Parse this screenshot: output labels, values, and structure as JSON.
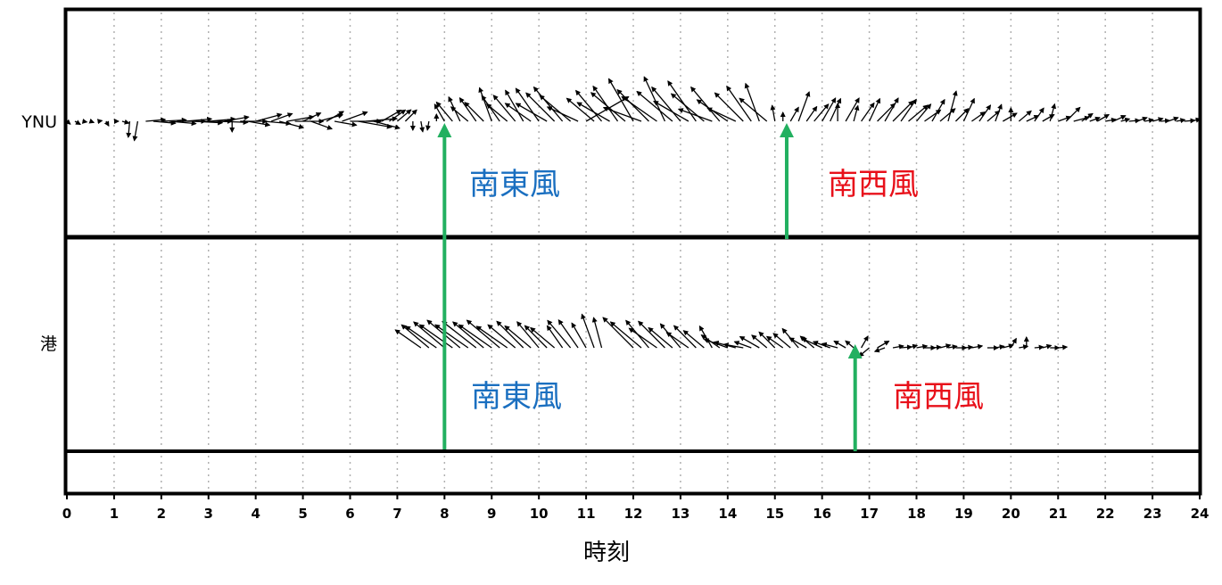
{
  "chart_data": {
    "type": "wind-vector-timeseries",
    "xlabel": "時刻",
    "x_range": [
      0,
      24
    ],
    "x_ticks": [
      "0",
      "1",
      "2",
      "3",
      "4",
      "5",
      "6",
      "7",
      "8",
      "9",
      "10",
      "11",
      "12",
      "13",
      "14",
      "15",
      "16",
      "17",
      "18",
      "19",
      "20",
      "21",
      "22",
      "23",
      "24"
    ],
    "grid": "vertical dotted lines at each hour",
    "colors": {
      "arrow": "#000000",
      "marker": "#22b060",
      "southeast": "#1a6fc0",
      "southwest": "#e8101a"
    },
    "rows": [
      {
        "label": "YNU",
        "vectors": [
          [
            0.0,
            -40,
            5
          ],
          [
            0.17,
            -30,
            7
          ],
          [
            0.33,
            -10,
            5
          ],
          [
            0.5,
            -20,
            4
          ],
          [
            0.67,
            10,
            4
          ],
          [
            0.83,
            -60,
            6
          ],
          [
            1.0,
            0,
            5
          ],
          [
            1.17,
            -15,
            8
          ],
          [
            1.33,
            -95,
            18
          ],
          [
            1.5,
            -100,
            22
          ],
          [
            1.67,
            5,
            22
          ],
          [
            1.83,
            -5,
            25
          ],
          [
            2.0,
            3,
            28
          ],
          [
            2.17,
            -5,
            30
          ],
          [
            2.33,
            0,
            32
          ],
          [
            2.5,
            5,
            30
          ],
          [
            2.67,
            -3,
            33
          ],
          [
            2.83,
            0,
            35
          ],
          [
            3.0,
            5,
            30
          ],
          [
            3.17,
            -2,
            35
          ],
          [
            3.33,
            10,
            28
          ],
          [
            3.5,
            -90,
            12
          ],
          [
            3.67,
            0,
            30
          ],
          [
            3.83,
            -10,
            25
          ],
          [
            4.0,
            15,
            30
          ],
          [
            4.17,
            -5,
            30
          ],
          [
            4.33,
            20,
            25
          ],
          [
            4.5,
            -15,
            28
          ],
          [
            4.67,
            10,
            30
          ],
          [
            4.83,
            0,
            32
          ],
          [
            5.0,
            25,
            22
          ],
          [
            5.17,
            -20,
            25
          ],
          [
            5.33,
            15,
            28
          ],
          [
            5.5,
            30,
            22
          ],
          [
            5.67,
            -10,
            25
          ],
          [
            5.83,
            20,
            30
          ],
          [
            6.0,
            0,
            35
          ],
          [
            6.17,
            -10,
            38
          ],
          [
            6.33,
            5,
            35
          ],
          [
            6.5,
            -15,
            30
          ],
          [
            6.67,
            30,
            25
          ],
          [
            6.83,
            35,
            22
          ],
          [
            7.0,
            40,
            20
          ],
          [
            7.17,
            45,
            18
          ],
          [
            7.33,
            -90,
            10
          ],
          [
            7.5,
            -80,
            12
          ],
          [
            7.67,
            -100,
            10
          ],
          [
            7.83,
            90,
            8
          ],
          [
            8.0,
            120,
            22
          ],
          [
            8.17,
            130,
            28
          ],
          [
            8.33,
            115,
            30
          ],
          [
            8.5,
            140,
            25
          ],
          [
            8.67,
            125,
            32
          ],
          [
            8.83,
            135,
            30
          ],
          [
            9.0,
            110,
            40
          ],
          [
            9.17,
            125,
            35
          ],
          [
            9.33,
            140,
            30
          ],
          [
            9.5,
            130,
            38
          ],
          [
            9.67,
            120,
            40
          ],
          [
            9.83,
            145,
            35
          ],
          [
            10.0,
            125,
            45
          ],
          [
            10.17,
            150,
            40
          ],
          [
            10.33,
            135,
            45
          ],
          [
            10.5,
            130,
            50
          ],
          [
            10.67,
            140,
            45
          ],
          [
            10.83,
            155,
            38
          ],
          [
            11.0,
            30,
            55
          ],
          [
            11.17,
            140,
            40
          ],
          [
            11.33,
            130,
            45
          ],
          [
            11.5,
            150,
            42
          ],
          [
            11.67,
            125,
            48
          ],
          [
            11.83,
            140,
            50
          ],
          [
            12.0,
            120,
            55
          ],
          [
            12.17,
            160,
            45
          ],
          [
            12.33,
            135,
            50
          ],
          [
            12.5,
            145,
            48
          ],
          [
            12.67,
            115,
            55
          ],
          [
            12.83,
            140,
            52
          ],
          [
            13.0,
            130,
            50
          ],
          [
            13.17,
            150,
            45
          ],
          [
            13.33,
            125,
            55
          ],
          [
            13.5,
            140,
            48
          ],
          [
            13.67,
            160,
            40
          ],
          [
            13.83,
            130,
            50
          ],
          [
            14.0,
            145,
            42
          ],
          [
            14.17,
            155,
            35
          ],
          [
            14.33,
            135,
            45
          ],
          [
            14.5,
            125,
            48
          ],
          [
            14.67,
            110,
            45
          ],
          [
            14.83,
            140,
            40
          ],
          [
            15.0,
            100,
            18
          ],
          [
            15.17,
            90,
            10
          ],
          [
            15.33,
            60,
            18
          ],
          [
            15.5,
            70,
            35
          ],
          [
            15.67,
            55,
            20
          ],
          [
            15.83,
            50,
            25
          ],
          [
            16.0,
            60,
            30
          ],
          [
            16.17,
            65,
            28
          ],
          [
            16.33,
            90,
            20
          ],
          [
            16.5,
            60,
            30
          ],
          [
            16.67,
            75,
            18
          ],
          [
            16.83,
            55,
            25
          ],
          [
            17.0,
            65,
            28
          ],
          [
            17.17,
            45,
            28
          ],
          [
            17.33,
            60,
            30
          ],
          [
            17.5,
            45,
            32
          ],
          [
            17.67,
            55,
            30
          ],
          [
            17.83,
            40,
            28
          ],
          [
            18.0,
            50,
            25
          ],
          [
            18.17,
            35,
            22
          ],
          [
            18.33,
            60,
            28
          ],
          [
            18.5,
            40,
            22
          ],
          [
            18.67,
            75,
            35
          ],
          [
            18.83,
            45,
            20
          ],
          [
            19.0,
            65,
            28
          ],
          [
            19.17,
            35,
            18
          ],
          [
            19.33,
            55,
            22
          ],
          [
            19.5,
            40,
            18
          ],
          [
            19.67,
            70,
            20
          ],
          [
            19.83,
            30,
            18
          ],
          [
            20.0,
            90,
            15
          ],
          [
            20.17,
            40,
            18
          ],
          [
            20.33,
            25,
            15
          ],
          [
            20.5,
            55,
            18
          ],
          [
            20.67,
            30,
            15
          ],
          [
            20.83,
            75,
            20
          ],
          [
            21.0,
            20,
            15
          ],
          [
            21.17,
            45,
            22
          ],
          [
            21.33,
            15,
            18
          ],
          [
            21.5,
            35,
            15
          ],
          [
            21.67,
            20,
            12
          ],
          [
            21.83,
            30,
            15
          ],
          [
            22.0,
            10,
            12
          ],
          [
            22.17,
            25,
            15
          ],
          [
            22.33,
            15,
            10
          ],
          [
            22.5,
            5,
            12
          ],
          [
            22.67,
            20,
            12
          ],
          [
            22.83,
            10,
            10
          ],
          [
            23.0,
            15,
            12
          ],
          [
            23.17,
            5,
            10
          ],
          [
            23.33,
            20,
            12
          ],
          [
            23.5,
            10,
            10
          ],
          [
            23.67,
            5,
            12
          ],
          [
            23.83,
            15,
            10
          ]
        ]
      },
      {
        "label": "港",
        "vectors": [
          [
            7.5,
            145,
            35
          ],
          [
            7.67,
            140,
            40
          ],
          [
            7.83,
            145,
            42
          ],
          [
            8.0,
            140,
            45
          ],
          [
            8.17,
            145,
            45
          ],
          [
            8.33,
            140,
            48
          ],
          [
            8.5,
            145,
            45
          ],
          [
            8.67,
            142,
            48
          ],
          [
            8.83,
            140,
            45
          ],
          [
            9.0,
            145,
            45
          ],
          [
            9.17,
            140,
            48
          ],
          [
            9.33,
            145,
            42
          ],
          [
            9.5,
            140,
            40
          ],
          [
            9.67,
            135,
            42
          ],
          [
            9.83,
            140,
            38
          ],
          [
            10.0,
            130,
            38
          ],
          [
            10.17,
            135,
            35
          ],
          [
            10.33,
            140,
            35
          ],
          [
            10.5,
            125,
            30
          ],
          [
            10.67,
            130,
            40
          ],
          [
            10.83,
            125,
            38
          ],
          [
            11.0,
            120,
            32
          ],
          [
            11.17,
            110,
            40
          ],
          [
            11.33,
            105,
            35
          ],
          [
            12.0,
            135,
            48
          ],
          [
            12.17,
            140,
            45
          ],
          [
            12.33,
            130,
            40
          ],
          [
            12.5,
            145,
            38
          ],
          [
            12.67,
            135,
            42
          ],
          [
            12.83,
            140,
            35
          ],
          [
            13.0,
            130,
            35
          ],
          [
            13.17,
            145,
            30
          ],
          [
            13.33,
            135,
            35
          ],
          [
            13.5,
            140,
            30
          ],
          [
            13.67,
            120,
            28
          ],
          [
            13.83,
            145,
            25
          ],
          [
            14.0,
            160,
            28
          ],
          [
            14.17,
            165,
            25
          ],
          [
            14.33,
            170,
            22
          ],
          [
            14.5,
            160,
            20
          ],
          [
            14.67,
            150,
            25
          ],
          [
            14.83,
            140,
            22
          ],
          [
            15.0,
            135,
            25
          ],
          [
            15.17,
            145,
            22
          ],
          [
            15.33,
            140,
            25
          ],
          [
            15.5,
            130,
            28
          ],
          [
            15.67,
            150,
            22
          ],
          [
            15.83,
            140,
            20
          ],
          [
            16.0,
            155,
            25
          ],
          [
            16.17,
            160,
            20
          ],
          [
            16.33,
            165,
            18
          ],
          [
            16.5,
            150,
            15
          ],
          [
            16.67,
            140,
            12
          ],
          [
            16.83,
            60,
            15
          ],
          [
            17.0,
            220,
            15
          ],
          [
            17.17,
            30,
            15
          ],
          [
            17.33,
            200,
            12
          ],
          [
            17.5,
            10,
            12
          ],
          [
            17.67,
            5,
            12
          ],
          [
            17.83,
            15,
            10
          ],
          [
            18.0,
            10,
            12
          ],
          [
            18.17,
            0,
            12
          ],
          [
            18.33,
            5,
            10
          ],
          [
            18.5,
            15,
            12
          ],
          [
            18.67,
            10,
            10
          ],
          [
            18.83,
            0,
            12
          ],
          [
            19.0,
            5,
            10
          ],
          [
            19.17,
            10,
            12
          ],
          [
            19.5,
            0,
            12
          ],
          [
            19.67,
            10,
            10
          ],
          [
            19.83,
            15,
            12
          ],
          [
            20.0,
            60,
            12
          ],
          [
            20.17,
            10,
            10
          ],
          [
            20.33,
            90,
            12
          ],
          [
            20.5,
            5,
            10
          ],
          [
            20.67,
            15,
            10
          ],
          [
            20.83,
            0,
            10
          ],
          [
            21.0,
            5,
            10
          ]
        ]
      }
    ],
    "annotations": [
      {
        "row": 0,
        "time": 8.0,
        "text": "南東風",
        "color": "southeast"
      },
      {
        "row": 0,
        "time": 15.25,
        "text": "南西風",
        "color": "southwest"
      },
      {
        "row": 1,
        "time": 8.0,
        "text": "南東風",
        "color": "southeast"
      },
      {
        "row": 1,
        "time": 16.7,
        "text": "南西風",
        "color": "southwest"
      }
    ]
  }
}
